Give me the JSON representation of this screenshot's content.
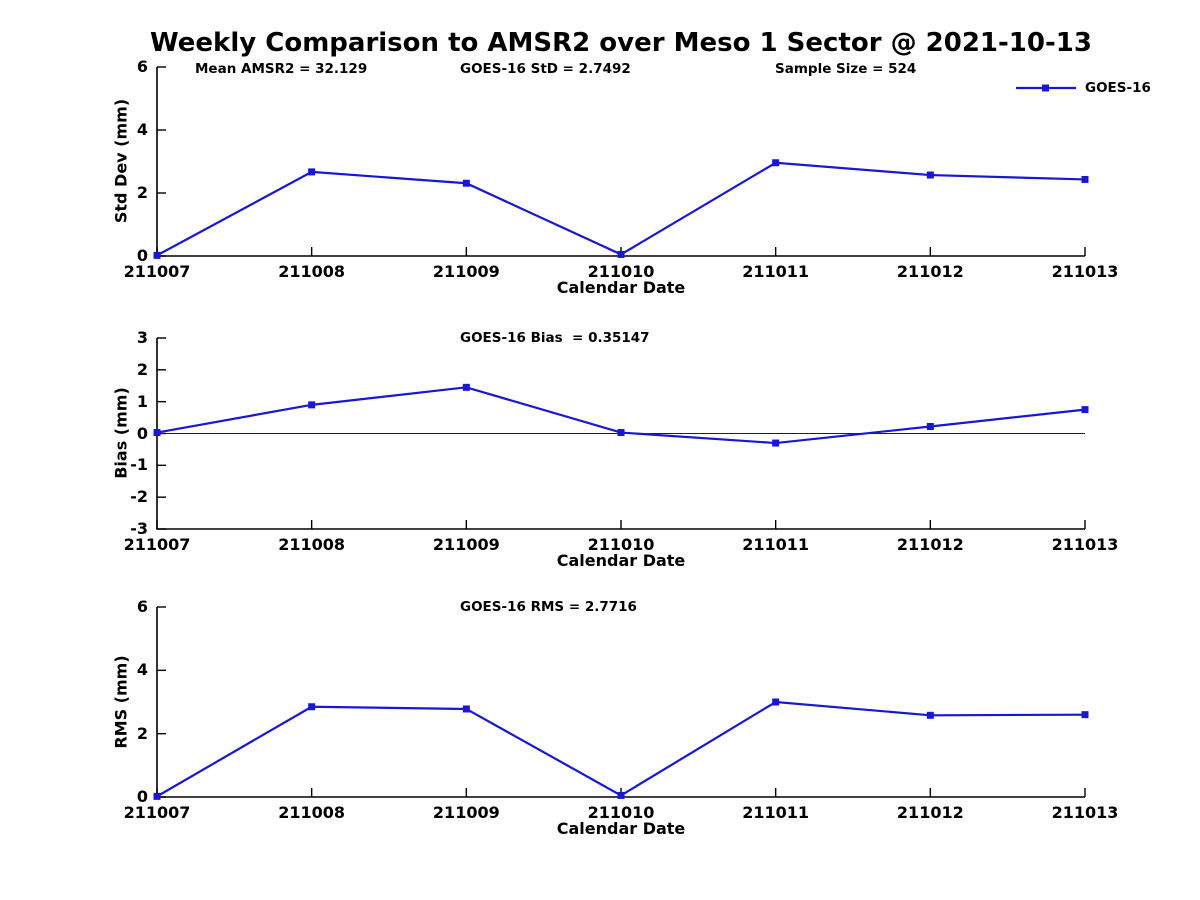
{
  "colors": {
    "background": "#ffffff",
    "axis": "#000000",
    "series_blue": "#1717d4"
  },
  "chart_data": [
    {
      "type": "line",
      "title": "Weekly Comparison to AMSR2 over Meso 1 Sector @ 2021-10-13",
      "annotations": [
        {
          "text": "Mean AMSR2 = 32.129"
        },
        {
          "text": "GOES-16 StD = 2.7492"
        },
        {
          "text": "Sample Size = 524"
        }
      ],
      "xlabel": "Calendar Date",
      "ylabel": "Std Dev (mm)",
      "x": [
        "211007",
        "211008",
        "211009",
        "211010",
        "211011",
        "211012",
        "211013"
      ],
      "ylim": [
        0,
        6
      ],
      "yticks": [
        0,
        2,
        4,
        6
      ],
      "grid": false,
      "legend": {
        "label": "GOES-16",
        "position": "top-right",
        "box": false
      },
      "series": [
        {
          "name": "GOES-16",
          "color": "#1717d4",
          "marker": "square",
          "values": [
            0.02,
            2.67,
            2.31,
            0.05,
            2.96,
            2.57,
            2.43
          ]
        }
      ]
    },
    {
      "type": "line",
      "annotations": [
        {
          "text": "GOES-16 Bias  = 0.35147"
        }
      ],
      "xlabel": "Calendar Date",
      "ylabel": "Bias (mm)",
      "x": [
        "211007",
        "211008",
        "211009",
        "211010",
        "211011",
        "211012",
        "211013"
      ],
      "ylim": [
        -3,
        3
      ],
      "yticks": [
        3,
        2,
        1,
        0,
        -1,
        -2,
        -3
      ],
      "grid": false,
      "zero_line": true,
      "series": [
        {
          "name": "GOES-16",
          "color": "#1717d4",
          "marker": "square",
          "values": [
            0.03,
            0.9,
            1.45,
            0.03,
            -0.3,
            0.22,
            0.75
          ]
        }
      ]
    },
    {
      "type": "line",
      "annotations": [
        {
          "text": "GOES-16 RMS = 2.7716"
        }
      ],
      "xlabel": "Calendar Date",
      "ylabel": "RMS (mm)",
      "x": [
        "211007",
        "211008",
        "211009",
        "211010",
        "211011",
        "211012",
        "211013"
      ],
      "ylim": [
        0,
        6
      ],
      "yticks": [
        0,
        2,
        4,
        6
      ],
      "grid": false,
      "series": [
        {
          "name": "GOES-16",
          "color": "#1717d4",
          "marker": "square",
          "values": [
            0.02,
            2.85,
            2.78,
            0.05,
            3.0,
            2.58,
            2.6
          ]
        }
      ]
    }
  ]
}
